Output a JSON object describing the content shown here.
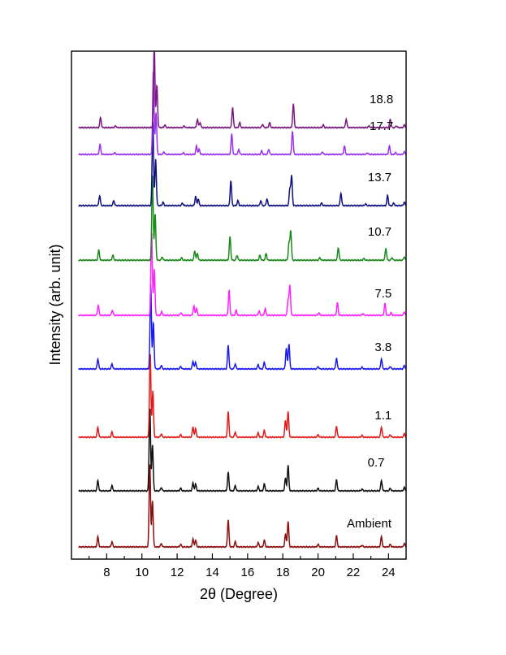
{
  "chart_data": {
    "type": "line",
    "title": "",
    "xlabel": "2θ (Degree)",
    "ylabel": "Intensity (arb. unit)",
    "xlim": [
      6,
      25
    ],
    "major_ticks": [
      8,
      10,
      12,
      14,
      16,
      18,
      20,
      22,
      24
    ],
    "minor_ticks": [
      7,
      9,
      11,
      13,
      15,
      17,
      19,
      21,
      23,
      25
    ],
    "yticks_shown": false,
    "grid": false,
    "legend": "none",
    "series": [
      {
        "name": "Ambient",
        "color": "#8b1010",
        "baseline": 0.02,
        "peaks": [
          [
            7.5,
            0.12
          ],
          [
            8.3,
            0.06
          ],
          [
            10.45,
            1.0
          ],
          [
            10.6,
            0.55
          ],
          [
            11.1,
            0.04
          ],
          [
            12.2,
            0.03
          ],
          [
            12.9,
            0.09
          ],
          [
            13.05,
            0.08
          ],
          [
            14.9,
            0.32
          ],
          [
            15.3,
            0.06
          ],
          [
            16.6,
            0.05
          ],
          [
            16.95,
            0.08
          ],
          [
            18.15,
            0.15
          ],
          [
            18.3,
            0.3
          ],
          [
            20.0,
            0.03
          ],
          [
            21.05,
            0.13
          ],
          [
            22.5,
            0.02
          ],
          [
            23.6,
            0.12
          ],
          [
            24.1,
            0.03
          ],
          [
            24.9,
            0.04
          ]
        ]
      },
      {
        "name": "0.7",
        "color": "#111111",
        "baseline": 0.135,
        "peaks": [
          [
            7.5,
            0.12
          ],
          [
            8.3,
            0.06
          ],
          [
            10.45,
            1.0
          ],
          [
            10.6,
            0.55
          ],
          [
            11.1,
            0.04
          ],
          [
            12.2,
            0.03
          ],
          [
            12.9,
            0.09
          ],
          [
            13.05,
            0.08
          ],
          [
            14.9,
            0.22
          ],
          [
            15.3,
            0.06
          ],
          [
            16.6,
            0.05
          ],
          [
            16.95,
            0.08
          ],
          [
            18.15,
            0.15
          ],
          [
            18.3,
            0.3
          ],
          [
            20.0,
            0.03
          ],
          [
            21.05,
            0.13
          ],
          [
            22.5,
            0.02
          ],
          [
            23.6,
            0.12
          ],
          [
            24.1,
            0.03
          ],
          [
            24.9,
            0.04
          ]
        ]
      },
      {
        "name": "1.1",
        "color": "#e31a1a",
        "baseline": 0.245,
        "peaks": [
          [
            7.5,
            0.12
          ],
          [
            8.3,
            0.06
          ],
          [
            10.47,
            1.0
          ],
          [
            10.62,
            0.55
          ],
          [
            11.1,
            0.04
          ],
          [
            12.2,
            0.03
          ],
          [
            12.9,
            0.12
          ],
          [
            13.05,
            0.1
          ],
          [
            14.9,
            0.3
          ],
          [
            15.3,
            0.06
          ],
          [
            16.6,
            0.05
          ],
          [
            16.95,
            0.08
          ],
          [
            18.15,
            0.2
          ],
          [
            18.3,
            0.3
          ],
          [
            20.0,
            0.03
          ],
          [
            21.05,
            0.13
          ],
          [
            22.5,
            0.02
          ],
          [
            23.6,
            0.12
          ],
          [
            24.1,
            0.03
          ],
          [
            24.9,
            0.04
          ]
        ]
      },
      {
        "name": "3.8",
        "color": "#1a1aee",
        "baseline": 0.385,
        "peaks": [
          [
            7.5,
            0.12
          ],
          [
            8.3,
            0.06
          ],
          [
            10.5,
            1.0
          ],
          [
            10.65,
            0.55
          ],
          [
            11.1,
            0.04
          ],
          [
            12.2,
            0.03
          ],
          [
            12.9,
            0.09
          ],
          [
            13.05,
            0.08
          ],
          [
            14.9,
            0.28
          ],
          [
            15.3,
            0.06
          ],
          [
            16.6,
            0.05
          ],
          [
            16.95,
            0.08
          ],
          [
            18.2,
            0.25
          ],
          [
            18.35,
            0.3
          ],
          [
            20.0,
            0.03
          ],
          [
            21.05,
            0.13
          ],
          [
            22.5,
            0.02
          ],
          [
            23.6,
            0.12
          ],
          [
            24.1,
            0.03
          ],
          [
            24.9,
            0.04
          ]
        ]
      },
      {
        "name": "7.5",
        "color": "#ff22ff",
        "baseline": 0.495,
        "peaks": [
          [
            7.52,
            0.12
          ],
          [
            8.32,
            0.06
          ],
          [
            10.55,
            1.0
          ],
          [
            10.7,
            0.55
          ],
          [
            11.12,
            0.04
          ],
          [
            12.22,
            0.03
          ],
          [
            12.95,
            0.11
          ],
          [
            13.1,
            0.08
          ],
          [
            14.95,
            0.3
          ],
          [
            15.35,
            0.06
          ],
          [
            16.65,
            0.05
          ],
          [
            17.0,
            0.08
          ],
          [
            18.3,
            0.18
          ],
          [
            18.4,
            0.35
          ],
          [
            20.05,
            0.03
          ],
          [
            21.1,
            0.15
          ],
          [
            22.55,
            0.02
          ],
          [
            23.8,
            0.14
          ],
          [
            24.15,
            0.03
          ],
          [
            24.9,
            0.04
          ]
        ]
      },
      {
        "name": "10.7",
        "color": "#1a8a1a",
        "baseline": 0.608,
        "peaks": [
          [
            7.55,
            0.12
          ],
          [
            8.35,
            0.06
          ],
          [
            10.6,
            1.0
          ],
          [
            10.75,
            0.55
          ],
          [
            11.15,
            0.04
          ],
          [
            12.25,
            0.03
          ],
          [
            13.0,
            0.11
          ],
          [
            13.15,
            0.08
          ],
          [
            15.0,
            0.28
          ],
          [
            15.4,
            0.06
          ],
          [
            16.7,
            0.06
          ],
          [
            17.05,
            0.08
          ],
          [
            18.35,
            0.2
          ],
          [
            18.45,
            0.35
          ],
          [
            20.1,
            0.03
          ],
          [
            21.15,
            0.15
          ],
          [
            22.6,
            0.02
          ],
          [
            23.85,
            0.14
          ],
          [
            24.2,
            0.03
          ],
          [
            24.9,
            0.04
          ]
        ]
      },
      {
        "name": "13.7",
        "color": "#101080",
        "baseline": 0.72,
        "peaks": [
          [
            7.6,
            0.12
          ],
          [
            8.4,
            0.06
          ],
          [
            10.62,
            1.0
          ],
          [
            10.78,
            0.55
          ],
          [
            11.2,
            0.04
          ],
          [
            12.3,
            0.03
          ],
          [
            13.05,
            0.11
          ],
          [
            13.2,
            0.08
          ],
          [
            15.05,
            0.3
          ],
          [
            15.45,
            0.06
          ],
          [
            16.75,
            0.06
          ],
          [
            17.1,
            0.08
          ],
          [
            18.4,
            0.2
          ],
          [
            18.5,
            0.35
          ],
          [
            20.2,
            0.03
          ],
          [
            21.3,
            0.15
          ],
          [
            22.7,
            0.02
          ],
          [
            23.95,
            0.12
          ],
          [
            24.3,
            0.03
          ],
          [
            24.9,
            0.04
          ]
        ]
      },
      {
        "name": "17.7",
        "color": "#9b30ee",
        "baseline": 0.825,
        "peaks": [
          [
            7.62,
            0.12
          ],
          [
            8.45,
            0.02
          ],
          [
            10.65,
            1.0
          ],
          [
            10.8,
            0.5
          ],
          [
            11.25,
            0.03
          ],
          [
            12.35,
            0.02
          ],
          [
            13.1,
            0.1
          ],
          [
            13.25,
            0.06
          ],
          [
            15.1,
            0.24
          ],
          [
            15.5,
            0.06
          ],
          [
            16.8,
            0.04
          ],
          [
            17.2,
            0.06
          ],
          [
            18.55,
            0.28
          ],
          [
            20.25,
            0.03
          ],
          [
            21.5,
            0.1
          ],
          [
            22.8,
            0.02
          ],
          [
            24.05,
            0.1
          ],
          [
            24.4,
            0.02
          ],
          [
            24.9,
            0.03
          ]
        ]
      },
      {
        "name": "18.8",
        "color": "#7a1880",
        "baseline": 0.88,
        "peaks": [
          [
            7.65,
            0.12
          ],
          [
            8.5,
            0.02
          ],
          [
            10.7,
            1.0
          ],
          [
            10.85,
            0.5
          ],
          [
            11.3,
            0.03
          ],
          [
            12.4,
            0.02
          ],
          [
            13.15,
            0.1
          ],
          [
            13.3,
            0.06
          ],
          [
            15.15,
            0.24
          ],
          [
            15.55,
            0.06
          ],
          [
            16.85,
            0.04
          ],
          [
            17.25,
            0.06
          ],
          [
            18.6,
            0.28
          ],
          [
            20.3,
            0.03
          ],
          [
            21.6,
            0.1
          ],
          [
            22.9,
            0.02
          ],
          [
            24.1,
            0.1
          ],
          [
            24.45,
            0.02
          ],
          [
            24.9,
            0.03
          ]
        ]
      }
    ]
  }
}
